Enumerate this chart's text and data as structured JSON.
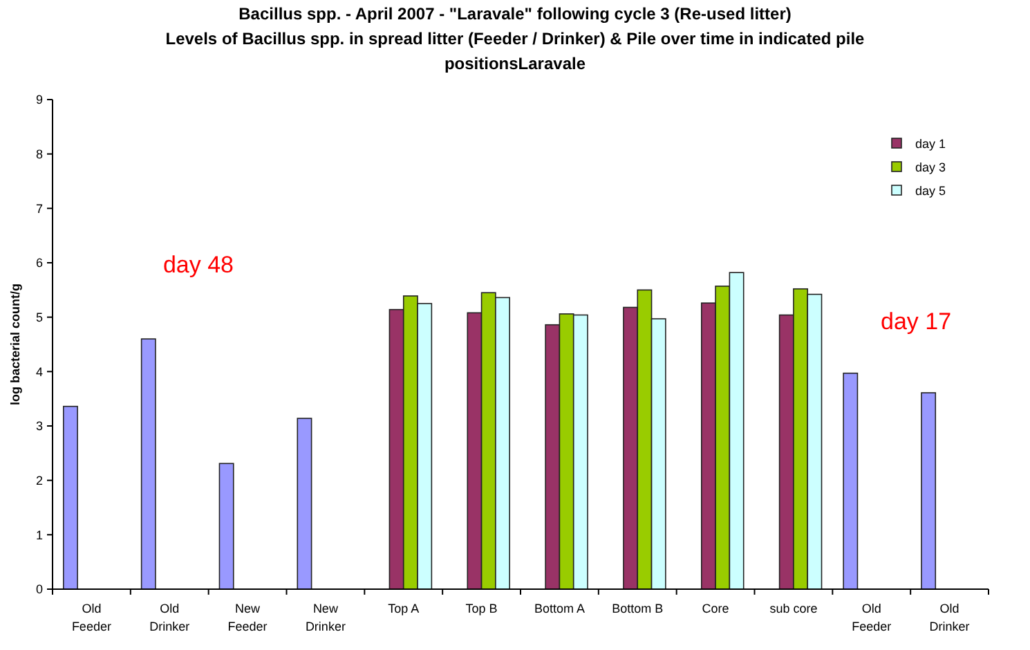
{
  "chart_data": {
    "type": "bar",
    "title": "Bacillus spp. - April 2007 - \"Laravale\" following cycle 3 (Re-used litter)",
    "subtitle": "Levels of Bacillus spp. in spread litter (Feeder / Drinker) & Pile over time in indicated pile positionsLaravale",
    "ylabel": "log bacterial count/g",
    "categories": [
      "Old\nFeeder",
      "Old\nDrinker",
      "New\nFeeder",
      "New\nDrinker",
      "Top A",
      "Top B",
      "Bottom A",
      "Bottom B",
      "Core",
      "sub core",
      "Old\nFeeder",
      "Old\nDrinker"
    ],
    "series": [
      {
        "color": "#9999ff",
        "values": [
          3.36,
          4.6,
          2.31,
          3.14,
          null,
          null,
          null,
          null,
          null,
          null,
          3.97,
          3.61
        ]
      },
      {
        "name": "day 1",
        "color": "#993366",
        "values": [
          null,
          null,
          null,
          null,
          5.14,
          5.08,
          4.86,
          5.18,
          5.26,
          5.04,
          null,
          null
        ]
      },
      {
        "name": "day 3",
        "color": "#99cc00",
        "values": [
          null,
          null,
          null,
          null,
          5.39,
          5.45,
          5.06,
          5.5,
          5.57,
          5.52,
          null,
          null
        ]
      },
      {
        "name": "day 5",
        "color": "#ccffff",
        "values": [
          null,
          null,
          null,
          null,
          5.25,
          5.36,
          5.04,
          4.97,
          5.82,
          5.42,
          null,
          null
        ]
      }
    ],
    "ylim": [
      0,
      9
    ],
    "yticks": [
      0,
      1,
      2,
      3,
      4,
      5,
      6,
      7,
      8,
      9
    ],
    "grid": false,
    "legend": "top right",
    "annotations": [
      "day 48",
      "day 17"
    ]
  }
}
